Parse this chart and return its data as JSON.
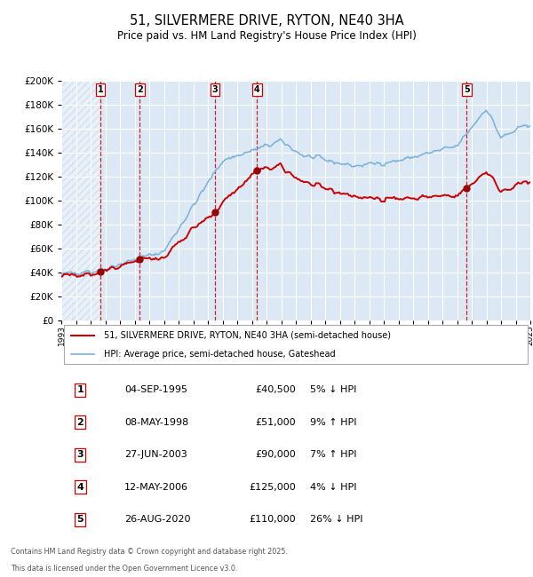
{
  "title_line1": "51, SILVERMERE DRIVE, RYTON, NE40 3HA",
  "title_line2": "Price paid vs. HM Land Registry's House Price Index (HPI)",
  "background_color": "#ffffff",
  "plot_bg_color": "#dce9f5",
  "hatch_color": "#a8c4e0",
  "grid_color": "#ffffff",
  "red_line_color": "#cc0000",
  "blue_line_color": "#7ab0d8",
  "sale_marker_color": "#990000",
  "dashed_line_color": "#cc0000",
  "ylim": [
    0,
    200000
  ],
  "ytick_step": 20000,
  "xstart_year": 1993,
  "xend_year": 2025,
  "sales": [
    {
      "num": 1,
      "year": 1995.67,
      "price": 40500,
      "date": "04-SEP-1995",
      "pct": "5%",
      "dir": "↓"
    },
    {
      "num": 2,
      "year": 1998.35,
      "price": 51000,
      "date": "08-MAY-1998",
      "pct": "9%",
      "dir": "↑"
    },
    {
      "num": 3,
      "year": 2003.49,
      "price": 90000,
      "date": "27-JUN-2003",
      "pct": "7%",
      "dir": "↑"
    },
    {
      "num": 4,
      "year": 2006.36,
      "price": 125000,
      "date": "12-MAY-2006",
      "pct": "4%",
      "dir": "↓"
    },
    {
      "num": 5,
      "year": 2020.65,
      "price": 110000,
      "date": "26-AUG-2020",
      "pct": "26%",
      "dir": "↓"
    }
  ],
  "legend_entries": [
    "51, SILVERMERE DRIVE, RYTON, NE40 3HA (semi-detached house)",
    "HPI: Average price, semi-detached house, Gateshead"
  ],
  "footer_line1": "Contains HM Land Registry data © Crown copyright and database right 2025.",
  "footer_line2": "This data is licensed under the Open Government Licence v3.0."
}
